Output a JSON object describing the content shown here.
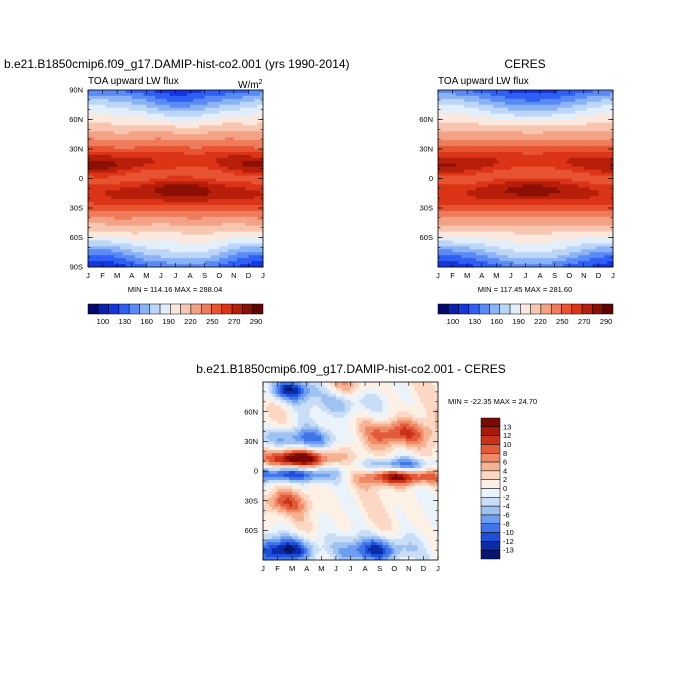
{
  "chart_data": [
    {
      "id": "model",
      "type": "heatmap",
      "title": "b.e21.B1850cmip6.f09_g17.DAMIP-hist-co2.001 (yrs 1990-2014)",
      "subtitle": "TOA upward LW flux",
      "units": "W/m",
      "units_sup": "2",
      "xlabel": "",
      "ylabel": "",
      "x_ticks": [
        "J",
        "F",
        "M",
        "A",
        "M",
        "J",
        "J",
        "A",
        "S",
        "O",
        "N",
        "D",
        "J"
      ],
      "y_ticks": [
        "90N",
        "60N",
        "30N",
        "0",
        "30S",
        "60S",
        "90S"
      ],
      "ylim": [
        -90,
        90
      ],
      "stats": "MIN = 114.16 MAX = 288.04",
      "colorbar": {
        "labels": [
          "100",
          "130",
          "160",
          "190",
          "220",
          "250",
          "270",
          "290"
        ],
        "colors": [
          "#030a6b",
          "#0b20b0",
          "#1436e0",
          "#2f5ff5",
          "#5a8af5",
          "#8cb3f5",
          "#bcd6f8",
          "#e3eefb",
          "#fbe8df",
          "#f8c6b0",
          "#f4a285",
          "#ee7c5c",
          "#e85432",
          "#dc3417",
          "#b71f0b",
          "#8c0f05",
          "#5f0502"
        ]
      }
    },
    {
      "id": "obs",
      "type": "heatmap",
      "title": "CERES",
      "subtitle": "TOA upward LW flux",
      "x_ticks": [
        "J",
        "F",
        "M",
        "A",
        "M",
        "J",
        "J",
        "A",
        "S",
        "O",
        "N",
        "D",
        "J"
      ],
      "y_ticks": [
        "60N",
        "30N",
        "0",
        "30S",
        "60S"
      ],
      "ylim": [
        -90,
        90
      ],
      "stats": "MIN = 117.45 MAX = 281.60",
      "colorbar": {
        "labels": [
          "100",
          "130",
          "160",
          "190",
          "220",
          "250",
          "270",
          "290"
        ]
      }
    },
    {
      "id": "diff",
      "type": "heatmap",
      "title": "b.e21.B1850cmip6.f09_g17.DAMIP-hist-co2.001 - CERES",
      "x_ticks": [
        "J",
        "F",
        "M",
        "A",
        "M",
        "J",
        "J",
        "A",
        "S",
        "O",
        "N",
        "D",
        "J"
      ],
      "y_ticks": [
        "60N",
        "30N",
        "0",
        "30S",
        "60S"
      ],
      "ylim": [
        -90,
        90
      ],
      "stats": "MIN = -22.35 MAX =  24.70",
      "colorbar": {
        "labels": [
          "13",
          "12",
          "10",
          "8",
          "6",
          "4",
          "2",
          "0",
          "-2",
          "-4",
          "-6",
          "-8",
          "-10",
          "-12",
          "-13"
        ],
        "colors": [
          "#7a0903",
          "#a8190a",
          "#c93218",
          "#e25a3a",
          "#f08a66",
          "#f6b393",
          "#fbd7c4",
          "#fdf1e6",
          "#eaf2fb",
          "#c9ddf6",
          "#9ec2f2",
          "#6f9ef0",
          "#3f74ea",
          "#1f4fd8",
          "#0a2ca8",
          "#031670"
        ]
      }
    }
  ]
}
